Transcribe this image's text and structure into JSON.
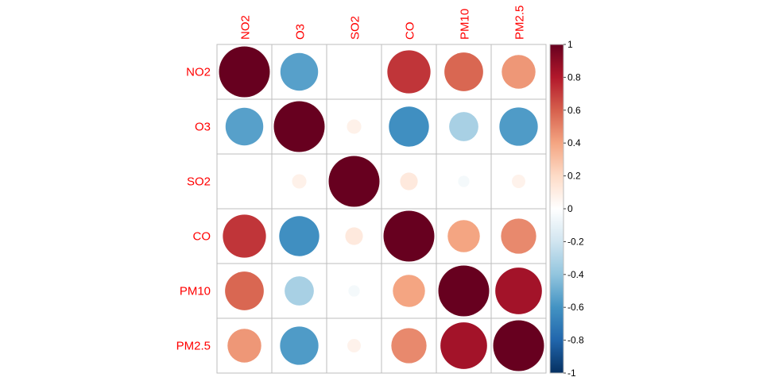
{
  "chart_data": {
    "type": "heatmap",
    "title": "",
    "variables": [
      "NO2",
      "O3",
      "SO2",
      "CO",
      "PM10",
      "PM2.5"
    ],
    "matrix": [
      [
        1.0,
        -0.55,
        0.0,
        0.72,
        0.58,
        0.44
      ],
      [
        -0.55,
        1.0,
        0.08,
        -0.62,
        -0.33,
        -0.57
      ],
      [
        0.0,
        0.08,
        1.0,
        0.12,
        -0.05,
        0.07
      ],
      [
        0.72,
        -0.62,
        0.12,
        1.0,
        0.4,
        0.48
      ],
      [
        0.58,
        -0.33,
        -0.05,
        0.4,
        1.0,
        0.84
      ],
      [
        0.44,
        -0.57,
        0.07,
        0.48,
        0.84,
        1.0
      ]
    ],
    "color_scale": {
      "range": [
        -1,
        1
      ],
      "ticks": [
        "1",
        "0.8",
        "0.6",
        "0.4",
        "0.2",
        "0",
        "-0.2",
        "-0.4",
        "-0.6",
        "-0.8",
        "-1"
      ],
      "colors": [
        "#67001F",
        "#B2182B",
        "#D6604D",
        "#F4A582",
        "#FDDBC7",
        "#FFFFFF",
        "#D1E5F0",
        "#92C5DE",
        "#4393C3",
        "#2166AC",
        "#053061"
      ]
    },
    "label_color": "#FF0000",
    "grid": true,
    "legend_position": "right"
  }
}
